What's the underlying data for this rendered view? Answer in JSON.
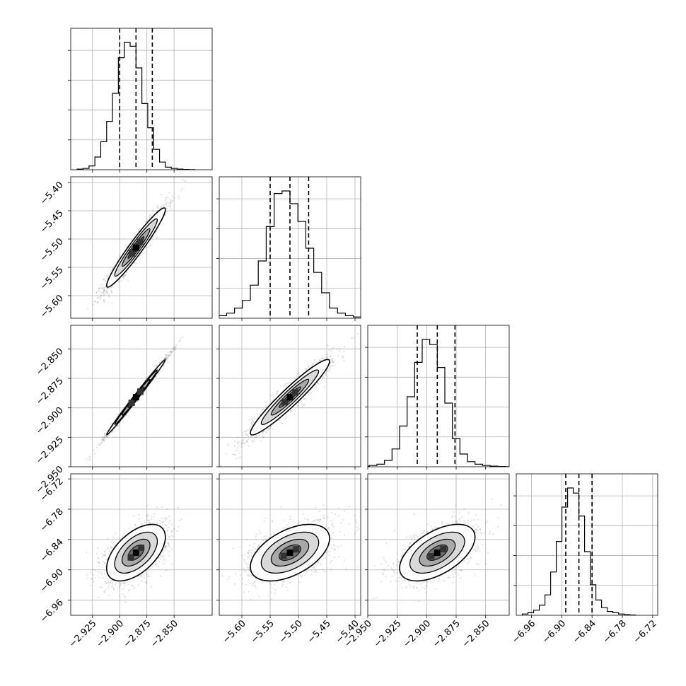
{
  "chart_data": {
    "type": "corner",
    "title": "",
    "grid": true,
    "parameters": [
      {
        "range": [
          -2.945,
          -2.815
        ],
        "ticks": [
          -2.925,
          -2.9,
          -2.875,
          -2.85
        ],
        "tick_labels": [
          "−2.925",
          "−2.900",
          "−2.875",
          "−2.850"
        ]
      },
      {
        "range": [
          -5.64,
          -5.39
        ],
        "ticks": [
          -5.6,
          -5.55,
          -5.5,
          -5.45,
          -5.4
        ],
        "tick_labels": [
          "−5.60",
          "−5.55",
          "−5.50",
          "−5.45",
          "−5.40"
        ]
      },
      {
        "range": [
          -2.95,
          -2.83
        ],
        "ticks": [
          -2.95,
          -2.925,
          -2.9,
          -2.875,
          -2.85
        ],
        "tick_labels": [
          "−2.950",
          "−2.925",
          "−2.900",
          "−2.875",
          "−2.850"
        ]
      },
      {
        "range": [
          -6.99,
          -6.71
        ],
        "ticks": [
          -6.96,
          -6.9,
          -6.84,
          -6.78,
          -6.72
        ],
        "tick_labels": [
          "−6.96",
          "−6.90",
          "−6.84",
          "−6.78",
          "−6.72"
        ]
      }
    ],
    "marginals": [
      {
        "mean": -2.885,
        "sigma": 0.0135,
        "quantiles": [
          -2.9,
          -2.885,
          -2.87
        ],
        "histogram": [
          0.005,
          0.01,
          0.03,
          0.1,
          0.22,
          0.38,
          0.6,
          0.88,
          1.0,
          0.97,
          0.8,
          0.52,
          0.33,
          0.16,
          0.06,
          0.02,
          0.01,
          0.005,
          0.002,
          0.001
        ]
      },
      {
        "mean": -5.515,
        "sigma": 0.035,
        "quantiles": [
          -5.55,
          -5.515,
          -5.482
        ],
        "histogram": [
          0.01,
          0.02,
          0.04,
          0.08,
          0.14,
          0.26,
          0.45,
          0.72,
          0.98,
          1.0,
          0.9,
          0.76,
          0.55,
          0.36,
          0.2,
          0.08,
          0.04,
          0.02,
          0.01,
          0.005
        ]
      },
      {
        "mean": -2.891,
        "sigma": 0.016,
        "quantiles": [
          -2.908,
          -2.891,
          -2.876
        ],
        "histogram": [
          0.005,
          0.01,
          0.02,
          0.05,
          0.14,
          0.32,
          0.55,
          0.82,
          1.0,
          0.96,
          0.78,
          0.5,
          0.22,
          0.1,
          0.04,
          0.02,
          0.01,
          0.005,
          0.002,
          0.001
        ]
      },
      {
        "mean": -6.866,
        "sigma": 0.028,
        "quantiles": [
          -6.892,
          -6.866,
          -6.84
        ],
        "histogram": [
          0.01,
          0.02,
          0.04,
          0.08,
          0.16,
          0.34,
          0.58,
          0.85,
          1.0,
          0.96,
          0.78,
          0.5,
          0.24,
          0.12,
          0.06,
          0.03,
          0.02,
          0.01,
          0.005,
          0.002
        ]
      }
    ],
    "correlations": [
      [
        1.0,
        0.96,
        0.995,
        0.55
      ],
      [
        0.96,
        1.0,
        0.95,
        0.5
      ],
      [
        0.995,
        0.95,
        1.0,
        0.55
      ],
      [
        0.55,
        0.5,
        0.55,
        1.0
      ]
    ]
  }
}
